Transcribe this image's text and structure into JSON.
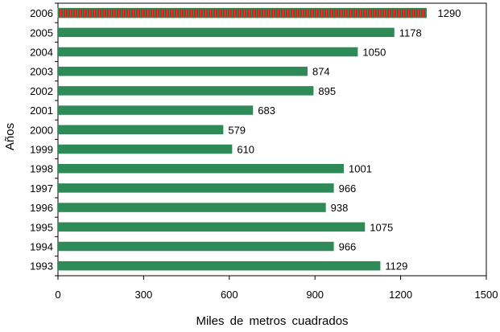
{
  "colors": {
    "bar": "#2e8b57",
    "highlight_bar": "#cc2a1e",
    "highlight_hatch": "#2e8b57",
    "axis": "#000000",
    "background": "#ffffff"
  },
  "chart_data": {
    "type": "bar",
    "orientation": "horizontal",
    "title": "",
    "xlabel": "Miles de metros cuadrados",
    "ylabel": "Años",
    "xlim": [
      0,
      1500
    ],
    "xticks": [
      0,
      300,
      600,
      900,
      1200,
      1500
    ],
    "grid": false,
    "legend": "none",
    "categories": [
      "2006",
      "2005",
      "2004",
      "2003",
      "2002",
      "2001",
      "2000",
      "1999",
      "1998",
      "1997",
      "1996",
      "1995",
      "1994",
      "1993"
    ],
    "values": [
      1290,
      1178,
      1050,
      874,
      895,
      683,
      579,
      610,
      1001,
      966,
      938,
      1075,
      966,
      1129
    ],
    "data_labels": [
      "1290",
      "1178",
      "1050",
      "874",
      "895",
      "683",
      "579",
      "610",
      "1001",
      "966",
      "938",
      "1075",
      "966",
      "1129"
    ],
    "highlight_category": "2006"
  }
}
